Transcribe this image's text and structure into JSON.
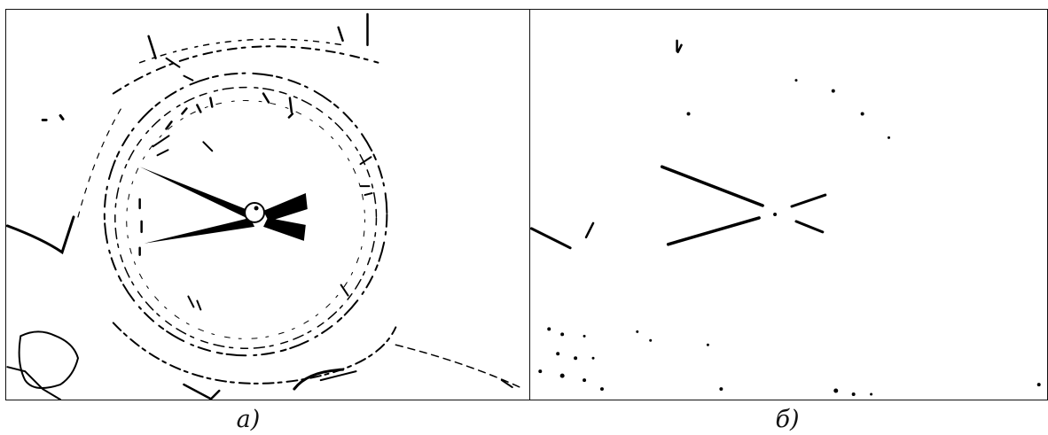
{
  "figure": {
    "panels": [
      {
        "caption": "a)"
      },
      {
        "caption": "б)"
      }
    ]
  }
}
